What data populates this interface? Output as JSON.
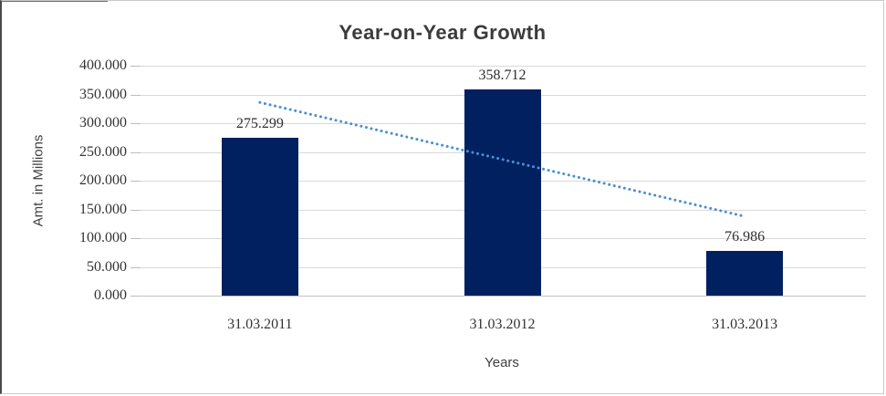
{
  "chart_data": {
    "type": "bar",
    "title": "Year-on-Year Growth",
    "xlabel": "Years",
    "ylabel": "Amt. in Millions",
    "categories": [
      "31.03.2011",
      "31.03.2012",
      "31.03.2013"
    ],
    "values": [
      275.299,
      358.712,
      76.986
    ],
    "data_labels": [
      "275.299",
      "358.712",
      "76.986"
    ],
    "ylim": [
      0,
      400
    ],
    "ytick_step": 50,
    "ytick_labels": [
      "0.000",
      "50.000",
      "100.000",
      "150.000",
      "200.000",
      "250.000",
      "300.000",
      "350.000",
      "400.000"
    ],
    "grid": true,
    "legend": "none",
    "bar_color": "#002060",
    "gridline_color": "#d9d9d9",
    "trendline": {
      "type": "linear",
      "style": "dotted",
      "color": "#4a8fd3"
    }
  }
}
